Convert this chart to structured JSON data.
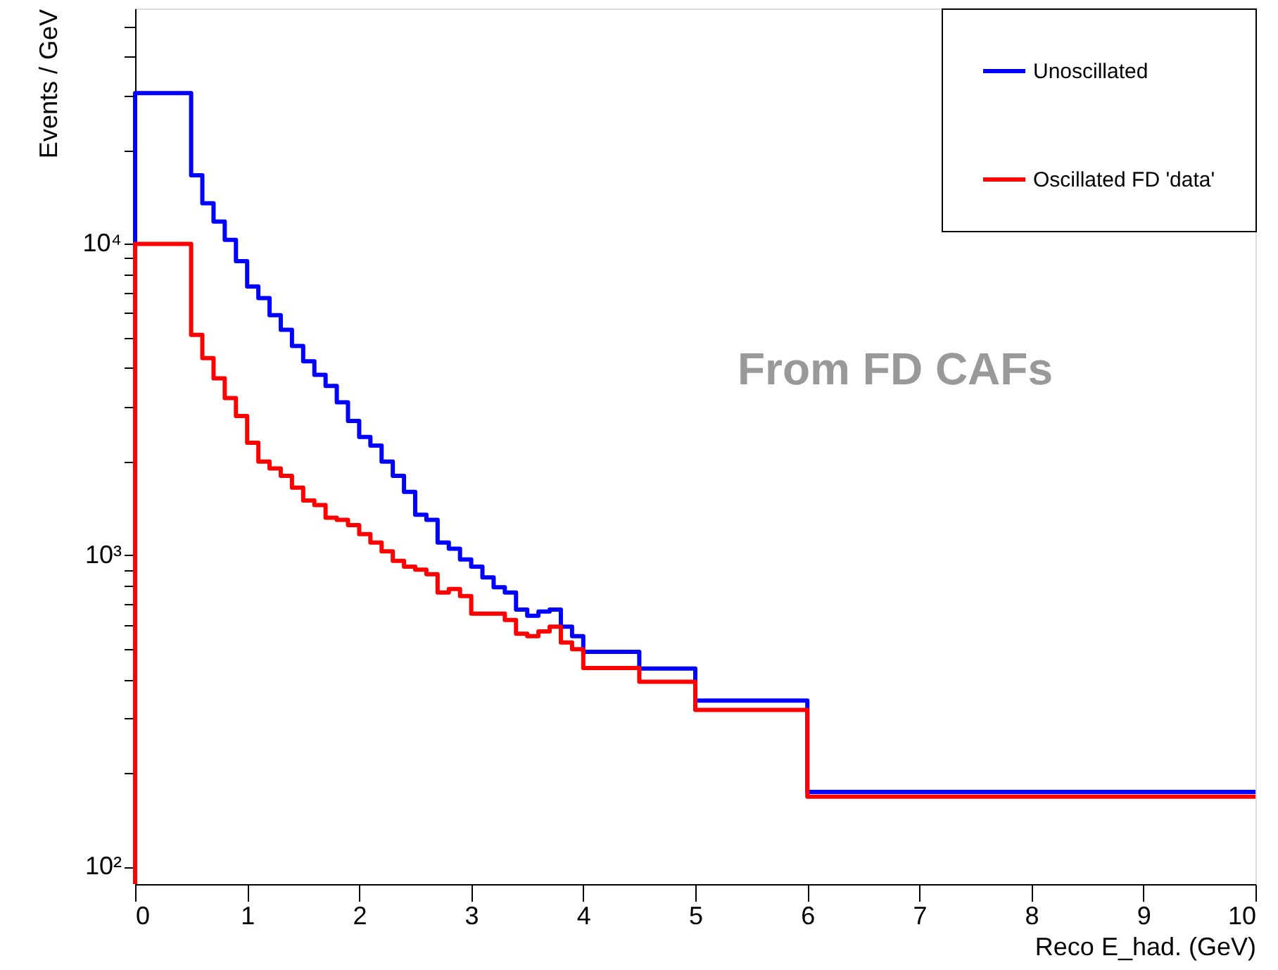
{
  "chart_data": {
    "type": "histogram",
    "xlabel": "Reco E_had. (GeV)",
    "ylabel": "Events / GeV",
    "bins": [
      0,
      0.5,
      0.6,
      0.7,
      0.8,
      0.9,
      1.0,
      1.1,
      1.2,
      1.3,
      1.4,
      1.5,
      1.6,
      1.7,
      1.8,
      1.9,
      2.0,
      2.1,
      2.2,
      2.3,
      2.4,
      2.5,
      2.6,
      2.7,
      2.8,
      2.9,
      3.0,
      3.1,
      3.2,
      3.3,
      3.4,
      3.5,
      3.6,
      3.7,
      3.8,
      3.9,
      4.0,
      4.5,
      5,
      6,
      10
    ],
    "series": [
      {
        "name": "Unoscillated",
        "color": "#0000ff",
        "values": [
          30500,
          16600,
          13500,
          11800,
          10300,
          8800,
          7300,
          6700,
          5900,
          5300,
          4700,
          4200,
          3800,
          3500,
          3100,
          2700,
          2400,
          2250,
          2000,
          1800,
          1600,
          1350,
          1300,
          1100,
          1050,
          970,
          920,
          850,
          790,
          760,
          670,
          640,
          660,
          670,
          590,
          550,
          490,
          433,
          342,
          174
        ]
      },
      {
        "name": "Oscillated FD 'data'",
        "color": "#ff0000",
        "values": [
          10000,
          5100,
          4300,
          3700,
          3200,
          2800,
          2300,
          2000,
          1900,
          1800,
          1650,
          1500,
          1450,
          1320,
          1300,
          1250,
          1170,
          1100,
          1030,
          960,
          920,
          900,
          870,
          760,
          780,
          740,
          650,
          650,
          650,
          620,
          560,
          550,
          570,
          590,
          525,
          500,
          435,
          393,
          319,
          168
        ]
      }
    ],
    "log": true,
    "xlim": [
      0,
      10
    ],
    "xticks": [
      0,
      1,
      2,
      3,
      4,
      5,
      6,
      7,
      8,
      9,
      10
    ],
    "ylim": [
      88,
      57000
    ],
    "yticks": [
      {
        "value": 100,
        "label": "10²"
      },
      {
        "value": 200,
        "label": null
      },
      {
        "value": 300,
        "label": null
      },
      {
        "value": 400,
        "label": null
      },
      {
        "value": 500,
        "label": null
      },
      {
        "value": 600,
        "label": null
      },
      {
        "value": 700,
        "label": null
      },
      {
        "value": 800,
        "label": null
      },
      {
        "value": 900,
        "label": null
      },
      {
        "value": 1000,
        "label": "10³"
      },
      {
        "value": 2000,
        "label": null
      },
      {
        "value": 3000,
        "label": null
      },
      {
        "value": 4000,
        "label": null
      },
      {
        "value": 5000,
        "label": null
      },
      {
        "value": 6000,
        "label": null
      },
      {
        "value": 7000,
        "label": null
      },
      {
        "value": 8000,
        "label": null
      },
      {
        "value": 9000,
        "label": null
      },
      {
        "value": 10000,
        "label": "10⁴"
      },
      {
        "value": 20000,
        "label": null
      },
      {
        "value": 30000,
        "label": null
      },
      {
        "value": 40000,
        "label": null
      },
      {
        "value": 50000,
        "label": null
      }
    ],
    "annotations": [
      "From FD CAFs"
    ],
    "grid": false,
    "legend": "top right",
    "line_style": "solid"
  }
}
